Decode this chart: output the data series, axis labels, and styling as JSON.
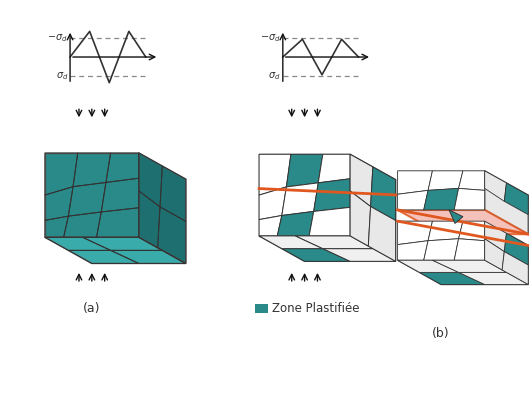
{
  "teal_color": "#2a8a8a",
  "teal_top": "#3aabab",
  "teal_right": "#1e7070",
  "orange_line": "#e05820",
  "pink_fill": "#f4b8b0",
  "bg_color": "#ffffff",
  "grain_line_color": "#333333",
  "cube_line_color": "#555555",
  "arrow_color": "#111111",
  "text_color": "#333333",
  "legend_label": "Zone Plastifiée",
  "label_a": "(a)",
  "label_b": "(b)"
}
